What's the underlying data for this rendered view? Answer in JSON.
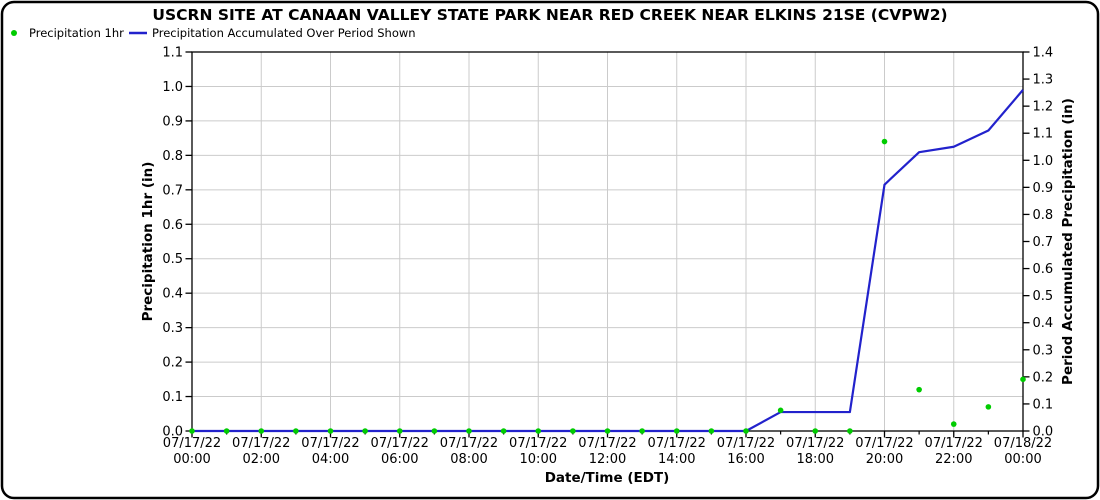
{
  "window": {
    "title": "USCRN SITE AT CANAAN VALLEY STATE PARK NEAR RED CREEK NEAR ELKINS 21SE (CVPW2)"
  },
  "legend": {
    "items": [
      {
        "label": "Precipitation 1hr",
        "marker": "green-dot",
        "color": "#00cc00"
      },
      {
        "label": "Precipitation Accumulated Over Period Shown",
        "marker": "blue-line",
        "color": "#2222cc"
      }
    ]
  },
  "colors": {
    "precip_dots": "#00cc00",
    "accumulated_line": "#2222cc",
    "gridlines": "#cbcbcb",
    "axes": "#000000",
    "background": "#ffffff"
  },
  "chart_data": {
    "type": "line",
    "title": "USCRN SITE AT CANAAN VALLEY STATE PARK NEAR RED CREEK NEAR ELKINS 21SE (CVPW2)",
    "xlabel": "Date/Time (EDT)",
    "x_range_hours": [
      0,
      24
    ],
    "major_tick_interval_hours": 2,
    "minor_tick_interval_hours": 1,
    "grid": {
      "horizontal_at_left_ticks": true,
      "vertical_at_major_ticks": true
    },
    "x_ticks": [
      {
        "hour": 0,
        "date": "07/17/22",
        "time": "00:00"
      },
      {
        "hour": 2,
        "date": "07/17/22",
        "time": "02:00"
      },
      {
        "hour": 4,
        "date": "07/17/22",
        "time": "04:00"
      },
      {
        "hour": 6,
        "date": "07/17/22",
        "time": "06:00"
      },
      {
        "hour": 8,
        "date": "07/17/22",
        "time": "08:00"
      },
      {
        "hour": 10,
        "date": "07/17/22",
        "time": "10:00"
      },
      {
        "hour": 12,
        "date": "07/17/22",
        "time": "12:00"
      },
      {
        "hour": 14,
        "date": "07/17/22",
        "time": "14:00"
      },
      {
        "hour": 16,
        "date": "07/17/22",
        "time": "16:00"
      },
      {
        "hour": 18,
        "date": "07/17/22",
        "time": "18:00"
      },
      {
        "hour": 20,
        "date": "07/17/22",
        "time": "20:00"
      },
      {
        "hour": 22,
        "date": "07/17/22",
        "time": "22:00"
      },
      {
        "hour": 24,
        "date": "07/18/22",
        "time": "00:00"
      }
    ],
    "left_axis": {
      "label": "Precipitation 1hr (in)",
      "min": 0.0,
      "max": 1.1,
      "tick_step": 0.1,
      "ticks": [
        "0.0",
        "0.1",
        "0.2",
        "0.3",
        "0.4",
        "0.5",
        "0.6",
        "0.7",
        "0.8",
        "0.9",
        "1.0",
        "1.1"
      ]
    },
    "right_axis": {
      "label": "Period Accumulated Precipitation (in)",
      "min": 0.0,
      "max": 1.4,
      "tick_step": 0.1,
      "ticks": [
        "0.0",
        "0.1",
        "0.2",
        "0.3",
        "0.4",
        "0.5",
        "0.6",
        "0.7",
        "0.8",
        "0.9",
        "1.0",
        "1.1",
        "1.2",
        "1.3",
        "1.4"
      ]
    },
    "series": [
      {
        "name": "Precipitation 1hr",
        "type": "scatter",
        "axis": "left",
        "color": "#00cc00",
        "x_hours": [
          0,
          1,
          2,
          3,
          4,
          5,
          6,
          7,
          8,
          9,
          10,
          11,
          12,
          13,
          14,
          15,
          16,
          17,
          18,
          19,
          20,
          21,
          22,
          23,
          24
        ],
        "values": [
          0.0,
          0.0,
          0.0,
          0.0,
          0.0,
          0.0,
          0.0,
          0.0,
          0.0,
          0.0,
          0.0,
          0.0,
          0.0,
          0.0,
          0.0,
          0.0,
          0.0,
          0.06,
          0.0,
          0.0,
          0.84,
          0.12,
          0.02,
          0.07,
          0.15
        ]
      },
      {
        "name": "Precipitation Accumulated Over Period Shown",
        "type": "line",
        "axis": "right",
        "color": "#2222cc",
        "points": [
          [
            0,
            0.0
          ],
          [
            16,
            0.0
          ],
          [
            17,
            0.07
          ],
          [
            19,
            0.07
          ],
          [
            20,
            0.91
          ],
          [
            21,
            1.03
          ],
          [
            22,
            1.05
          ],
          [
            23,
            1.11
          ],
          [
            24,
            1.26
          ]
        ]
      }
    ]
  }
}
